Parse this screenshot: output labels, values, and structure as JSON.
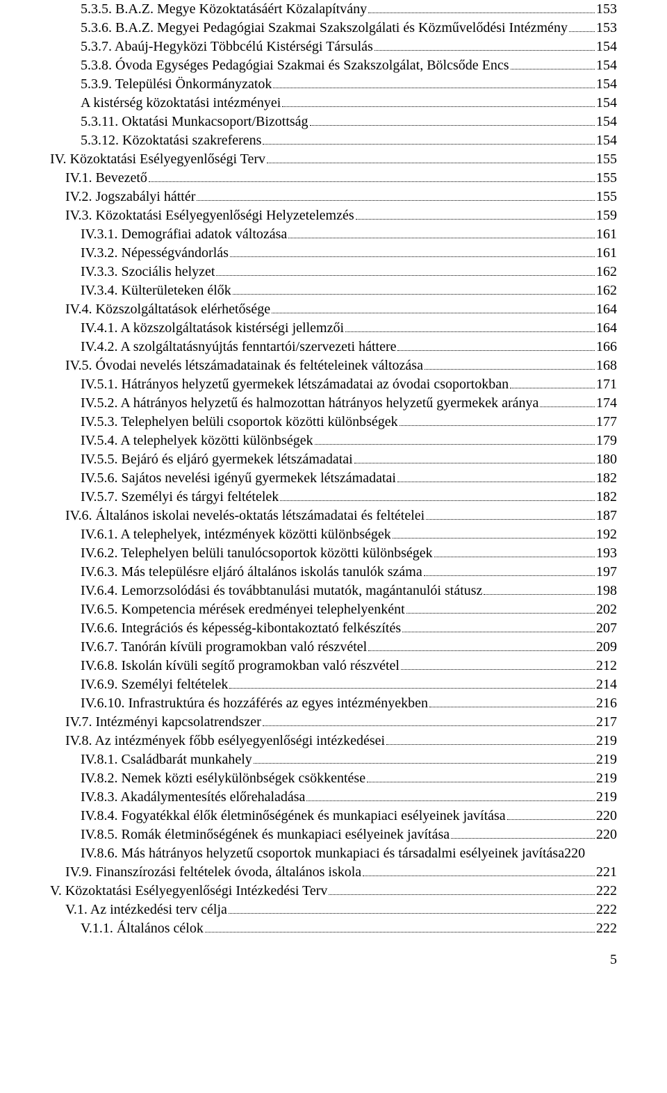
{
  "page_number": "5",
  "toc": [
    {
      "indent": 2,
      "label": "5.3.5. B.A.Z. Megye Közoktatásáért Közalapítvány",
      "page": "153"
    },
    {
      "indent": 2,
      "label": "5.3.6. B.A.Z. Megyei Pedagógiai Szakmai Szakszolgálati és Közművelődési Intézmény",
      "page": "153"
    },
    {
      "indent": 2,
      "label": "5.3.7. Abaúj-Hegyközi Többcélú Kistérségi Társulás",
      "page": "154"
    },
    {
      "indent": 2,
      "label": "5.3.8. Óvoda Egységes Pedagógiai Szakmai és Szakszolgálat, Bölcsőde Encs",
      "page": "154"
    },
    {
      "indent": 2,
      "label": "5.3.9. Települési Önkormányzatok",
      "page": "154"
    },
    {
      "indent": 2,
      "label": "A kistérség közoktatási intézményei",
      "page": "154"
    },
    {
      "indent": 2,
      "label": "5.3.11. Oktatási Munkacsoport/Bizottság",
      "page": "154"
    },
    {
      "indent": 2,
      "label": "5.3.12. Közoktatási szakreferens",
      "page": "154"
    },
    {
      "indent": 0,
      "label": "IV. Közoktatási Esélyegyenlőségi Terv",
      "page": "155"
    },
    {
      "indent": 1,
      "label": "IV.1. Bevezető",
      "page": "155"
    },
    {
      "indent": 1,
      "label": "IV.2. Jogszabályi háttér",
      "page": "155"
    },
    {
      "indent": 1,
      "label": "IV.3. Közoktatási Esélyegyenlőségi Helyzetelemzés",
      "page": "159"
    },
    {
      "indent": 2,
      "label": "IV.3.1. Demográfiai adatok változása",
      "page": "161"
    },
    {
      "indent": 2,
      "label": "IV.3.2. Népességvándorlás",
      "page": "161"
    },
    {
      "indent": 2,
      "label": "IV.3.3. Szociális helyzet",
      "page": "162"
    },
    {
      "indent": 2,
      "label": "IV.3.4. Külterületeken élők",
      "page": "162"
    },
    {
      "indent": 1,
      "label": "IV.4. Közszolgáltatások elérhetősége",
      "page": "164"
    },
    {
      "indent": 2,
      "label": "IV.4.1. A közszolgáltatások kistérségi jellemzői",
      "page": "164"
    },
    {
      "indent": 2,
      "label": "IV.4.2. A szolgáltatásnyújtás fenntartói/szervezeti háttere",
      "page": "166"
    },
    {
      "indent": 1,
      "label": "IV.5. Óvodai nevelés létszámadatainak és feltételeinek változása",
      "page": "168"
    },
    {
      "indent": 2,
      "label": "IV.5.1. Hátrányos helyzetű gyermekek létszámadatai az óvodai csoportokban",
      "page": "171"
    },
    {
      "indent": 2,
      "label": "IV.5.2. A hátrányos helyzetű és halmozottan hátrányos helyzetű gyermekek aránya",
      "page": "174"
    },
    {
      "indent": 2,
      "label": "IV.5.3. Telephelyen belüli csoportok közötti különbségek",
      "page": "177"
    },
    {
      "indent": 2,
      "label": "IV.5.4. A telephelyek közötti különbségek",
      "page": "179"
    },
    {
      "indent": 2,
      "label": "IV.5.5. Bejáró és eljáró gyermekek létszámadatai",
      "page": "180"
    },
    {
      "indent": 2,
      "label": "IV.5.6. Sajátos nevelési igényű gyermekek létszámadatai",
      "page": "182"
    },
    {
      "indent": 2,
      "label": "IV.5.7. Személyi és tárgyi feltételek",
      "page": "182"
    },
    {
      "indent": 1,
      "label": "IV.6. Általános iskolai nevelés-oktatás létszámadatai és feltételei",
      "page": "187"
    },
    {
      "indent": 2,
      "label": "IV.6.1. A telephelyek, intézmények közötti különbségek",
      "page": "192"
    },
    {
      "indent": 2,
      "label": "IV.6.2. Telephelyen belüli tanulócsoportok közötti különbségek",
      "page": "193"
    },
    {
      "indent": 2,
      "label": "IV.6.3. Más településre eljáró általános iskolás tanulók száma",
      "page": "197"
    },
    {
      "indent": 2,
      "label": "IV.6.4. Lemorzsolódási és továbbtanulási mutatók, magántanulói státusz",
      "page": "198"
    },
    {
      "indent": 2,
      "label": "IV.6.5. Kompetencia mérések eredményei telephelyenként",
      "page": "202"
    },
    {
      "indent": 2,
      "label": "IV.6.6. Integrációs és képesség-kibontakoztató felkészítés",
      "page": "207"
    },
    {
      "indent": 2,
      "label": "IV.6.7. Tanórán kívüli programokban való részvétel",
      "page": "209"
    },
    {
      "indent": 2,
      "label": "IV.6.8. Iskolán kívüli segítő programokban való részvétel",
      "page": "212"
    },
    {
      "indent": 2,
      "label": "IV.6.9. Személyi feltételek",
      "page": "214"
    },
    {
      "indent": 2,
      "label": "IV.6.10. Infrastruktúra és hozzáférés az egyes intézményekben",
      "page": "216"
    },
    {
      "indent": 1,
      "label": "IV.7. Intézményi kapcsolatrendszer",
      "page": "217"
    },
    {
      "indent": 1,
      "label": "IV.8. Az intézmények főbb esélyegyenlőségi intézkedései",
      "page": "219"
    },
    {
      "indent": 2,
      "label": "IV.8.1. Családbarát munkahely",
      "page": "219"
    },
    {
      "indent": 2,
      "label": "IV.8.2. Nemek közti esélykülönbségek csökkentése",
      "page": "219"
    },
    {
      "indent": 2,
      "label": "IV.8.3. Akadálymentesítés előrehaladása",
      "page": "219"
    },
    {
      "indent": 2,
      "label": "IV.8.4. Fogyatékkal élők életminőségének és munkapiaci esélyeinek javítása",
      "page": "220"
    },
    {
      "indent": 2,
      "label": "IV.8.5. Romák életminőségének és munkapiaci esélyeinek javítása",
      "page": "220"
    },
    {
      "indent": 2,
      "label": "IV.8.6. Más hátrányos helyzetű csoportok munkapiaci és társadalmi esélyeinek javítása",
      "page": "220",
      "noleader": true
    },
    {
      "indent": 1,
      "label": "IV.9. Finanszírozási feltételek óvoda, általános iskola",
      "page": "221"
    },
    {
      "indent": 0,
      "label": "V. Közoktatási Esélyegyenlőségi Intézkedési Terv",
      "page": "222"
    },
    {
      "indent": 1,
      "label": "V.1. Az intézkedési terv célja",
      "page": "222"
    },
    {
      "indent": 2,
      "label": "V.1.1. Általános célok",
      "page": "222"
    }
  ]
}
